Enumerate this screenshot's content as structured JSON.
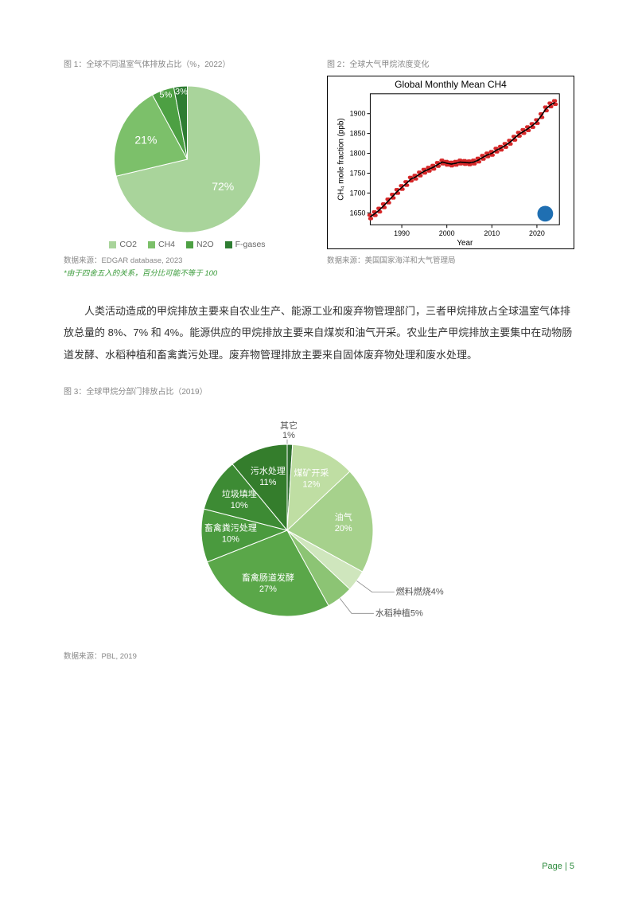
{
  "fig1": {
    "caption": "图 1：全球不同温室气体排放占比（%，2022）",
    "type": "pie",
    "slices": [
      {
        "label": "CO2",
        "value": 72,
        "color": "#a9d49b",
        "text_color": "#ffffff"
      },
      {
        "label": "CH4",
        "value": 21,
        "color": "#7cc06a",
        "text_color": "#ffffff"
      },
      {
        "label": "N2O",
        "value": 5,
        "color": "#4da043",
        "text_color": "#ffffff"
      },
      {
        "label": "F-gases",
        "value": 3,
        "color": "#2e7d32",
        "text_color": "#ffffff"
      }
    ],
    "legend_labels": [
      "CO2",
      "CH4",
      "N2O",
      "F-gases"
    ],
    "source": "数据来源：EDGAR database, 2023",
    "note": "*由于四舍五入的关系，百分比可能不等于 100"
  },
  "fig2": {
    "caption": "图 2：全球大气甲烷浓度变化",
    "type": "line",
    "title": "Global Monthly Mean CH4",
    "xlabel": "Year",
    "ylabel": "CH₄ mole fraction (ppb)",
    "xlim": [
      1983,
      2025
    ],
    "ylim": [
      1620,
      1950
    ],
    "xticks": [
      1990,
      2000,
      2010,
      2020
    ],
    "yticks": [
      1650,
      1700,
      1750,
      1800,
      1850,
      1900
    ],
    "line_color": "#000000",
    "marker_color": "#d62728",
    "marker_size": 2.2,
    "series": [
      [
        1983,
        1640
      ],
      [
        1984,
        1648
      ],
      [
        1985,
        1657
      ],
      [
        1986,
        1668
      ],
      [
        1987,
        1680
      ],
      [
        1988,
        1692
      ],
      [
        1989,
        1704
      ],
      [
        1990,
        1714
      ],
      [
        1991,
        1724
      ],
      [
        1992,
        1735
      ],
      [
        1993,
        1740
      ],
      [
        1994,
        1748
      ],
      [
        1995,
        1755
      ],
      [
        1996,
        1760
      ],
      [
        1997,
        1765
      ],
      [
        1998,
        1772
      ],
      [
        1999,
        1778
      ],
      [
        2000,
        1775
      ],
      [
        2001,
        1773
      ],
      [
        2002,
        1775
      ],
      [
        2003,
        1778
      ],
      [
        2004,
        1777
      ],
      [
        2005,
        1776
      ],
      [
        2006,
        1778
      ],
      [
        2007,
        1783
      ],
      [
        2008,
        1790
      ],
      [
        2009,
        1796
      ],
      [
        2010,
        1800
      ],
      [
        2011,
        1808
      ],
      [
        2012,
        1813
      ],
      [
        2013,
        1820
      ],
      [
        2014,
        1828
      ],
      [
        2015,
        1838
      ],
      [
        2016,
        1848
      ],
      [
        2017,
        1855
      ],
      [
        2018,
        1862
      ],
      [
        2019,
        1870
      ],
      [
        2020,
        1880
      ],
      [
        2021,
        1895
      ],
      [
        2022,
        1912
      ],
      [
        2023,
        1922
      ],
      [
        2024,
        1928
      ]
    ],
    "source": "数据来源：美国国家海洋和大气管理局"
  },
  "paragraph": "人类活动造成的甲烷排放主要来自农业生产、能源工业和废弃物管理部门，三者甲烷排放占全球温室气体排放总量的 8%、7% 和 4%。能源供应的甲烷排放主要来自煤炭和油气开采。农业生产甲烷排放主要集中在动物肠道发酵、水稻种植和畜禽粪污处理。废弃物管理排放主要来自固体废弃物处理和废水处理。",
  "fig3": {
    "caption": "图 3：全球甲烷分部门排放占比（2019）",
    "type": "pie",
    "slices": [
      {
        "label": "其它",
        "value": 1,
        "color": "#2f6f2f",
        "text_color": "#333333",
        "outside": true
      },
      {
        "label": "煤矿开采",
        "value": 12,
        "color": "#bfdea3",
        "text_color": "#ffffff"
      },
      {
        "label": "油气",
        "value": 20,
        "color": "#a6d18c",
        "text_color": "#ffffff"
      },
      {
        "label": "燃料燃烧",
        "value": 4,
        "color": "#cfe6bd",
        "text_color": "#666666",
        "outside": true
      },
      {
        "label": "水稻种植",
        "value": 5,
        "color": "#8cc474",
        "text_color": "#666666",
        "outside": true
      },
      {
        "label": "畜禽肠道发酵",
        "value": 27,
        "color": "#5aa749",
        "text_color": "#ffffff"
      },
      {
        "label": "畜禽粪污处理",
        "value": 10,
        "color": "#4a9a3e",
        "text_color": "#ffffff"
      },
      {
        "label": "垃圾填埋",
        "value": 10,
        "color": "#3d8b34",
        "text_color": "#ffffff"
      },
      {
        "label": "污水处理",
        "value": 11,
        "color": "#347d2c",
        "text_color": "#ffffff"
      }
    ],
    "source": "数据来源：PBL, 2019"
  },
  "page_number": "Page | 5"
}
